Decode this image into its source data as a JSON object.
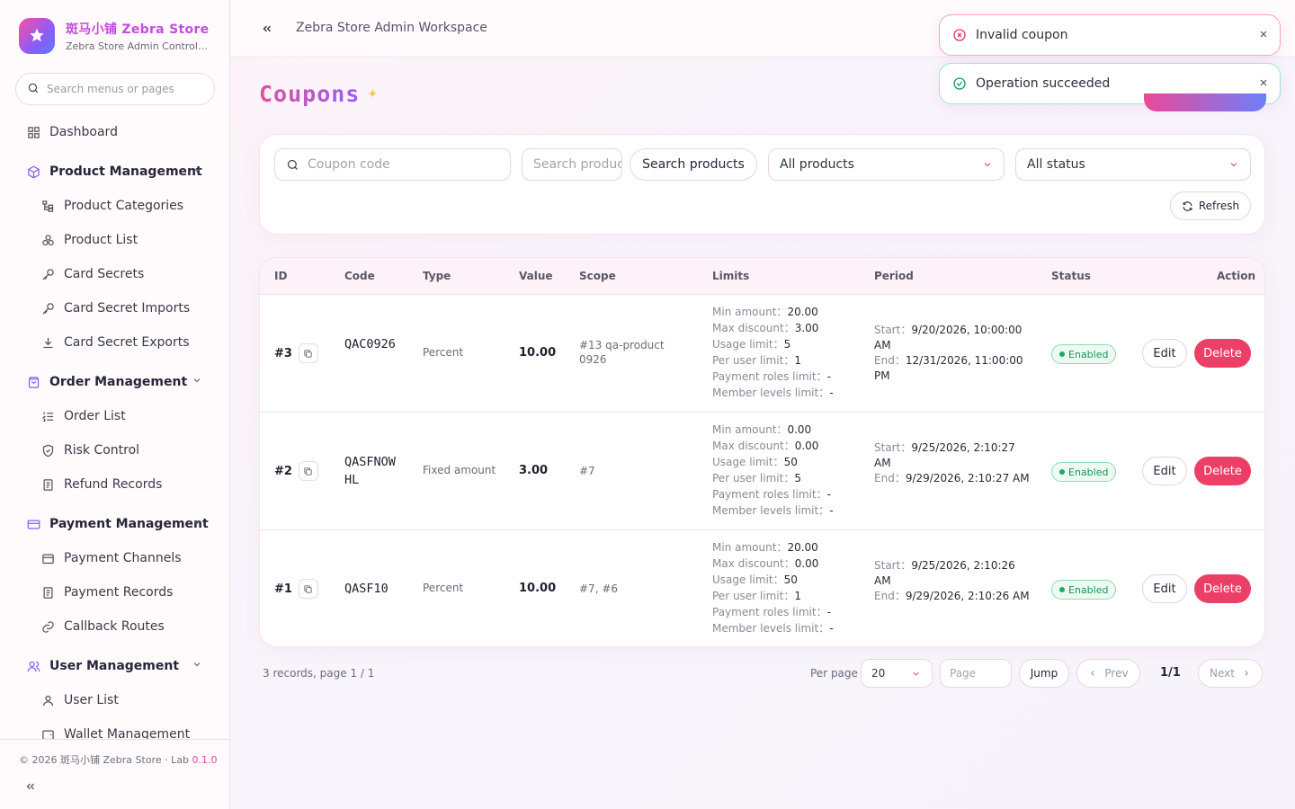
{
  "brand": {
    "name": "斑马小铺 Zebra Store",
    "subtitle": "Zebra Store Admin Control Panel"
  },
  "sidebar": {
    "search_placeholder": "Search menus or pages",
    "items": {
      "dashboard": "Dashboard",
      "product_management": "Product Management",
      "product_categories": "Product Categories",
      "product_list": "Product List",
      "card_secrets": "Card Secrets",
      "card_secret_imports": "Card Secret Imports",
      "card_secret_exports": "Card Secret Exports",
      "order_management": "Order Management",
      "order_list": "Order List",
      "risk_control": "Risk Control",
      "refund_records": "Refund Records",
      "payment_management": "Payment Management",
      "payment_channels": "Payment Channels",
      "payment_records": "Payment Records",
      "callback_routes": "Callback Routes",
      "user_management": "User Management",
      "user_list": "User List",
      "wallet_management": "Wallet Management"
    },
    "footer": {
      "copyright": "© 2026 斑马小铺 Zebra Store · Lab",
      "version": "0.1.0"
    }
  },
  "header": {
    "breadcrumb": "Zebra Store Admin Workspace"
  },
  "toasts": {
    "error": "Invalid coupon",
    "success": "Operation succeeded"
  },
  "page": {
    "title": "Coupons"
  },
  "filters": {
    "coupon_code_placeholder": "Coupon code",
    "product_search_placeholder": "Search products",
    "search_products_button": "Search products",
    "product_select": "All products",
    "status_select": "All status",
    "refresh_button": "Refresh"
  },
  "table": {
    "columns": {
      "id": "ID",
      "code": "Code",
      "type": "Type",
      "value": "Value",
      "scope": "Scope",
      "limits": "Limits",
      "period": "Period",
      "status": "Status",
      "action": "Action"
    },
    "limit_labels": {
      "min_amount": "Min amount",
      "max_discount": "Max discount",
      "usage_limit": "Usage limit",
      "per_user_limit": "Per user limit",
      "payment_roles_limit": "Payment roles limit",
      "member_levels_limit": "Member levels limit"
    },
    "period_labels": {
      "start": "Start",
      "end": "End"
    },
    "edit_label": "Edit",
    "delete_label": "Delete",
    "rows": [
      {
        "id": "#3",
        "code": "QAC0926",
        "type": "Percent",
        "value": "10.00",
        "scope": "#13 qa-product 0926",
        "min_amount": "20.00",
        "max_discount": "3.00",
        "usage_limit": "5",
        "per_user_limit": "1",
        "payment_roles_limit": "-",
        "member_levels_limit": "-",
        "start": "9/20/2026, 10:00:00 AM",
        "end": "12/31/2026, 11:00:00 PM",
        "status": "Enabled"
      },
      {
        "id": "#2",
        "code": "QASFNOWHL",
        "type": "Fixed amount",
        "value": "3.00",
        "scope": "#7",
        "min_amount": "0.00",
        "max_discount": "0.00",
        "usage_limit": "50",
        "per_user_limit": "5",
        "payment_roles_limit": "-",
        "member_levels_limit": "-",
        "start": "9/25/2026, 2:10:27 AM",
        "end": "9/29/2026, 2:10:27 AM",
        "status": "Enabled"
      },
      {
        "id": "#1",
        "code": "QASF10",
        "type": "Percent",
        "value": "10.00",
        "scope": "#7, #6",
        "min_amount": "20.00",
        "max_discount": "0.00",
        "usage_limit": "50",
        "per_user_limit": "1",
        "payment_roles_limit": "-",
        "member_levels_limit": "-",
        "start": "9/25/2026, 2:10:26 AM",
        "end": "9/29/2026, 2:10:26 AM",
        "status": "Enabled"
      }
    ]
  },
  "pagination": {
    "summary": "3 records, page 1 / 1",
    "per_page_label": "Per page",
    "per_page_value": "20",
    "page_placeholder": "Page",
    "jump": "Jump",
    "prev": "Prev",
    "count": "1/1",
    "next": "Next"
  },
  "colors": {
    "accent_pink": "#ec4899",
    "accent_purple": "#8b5cf6",
    "danger": "#ec3f68",
    "success": "#1faa65"
  }
}
